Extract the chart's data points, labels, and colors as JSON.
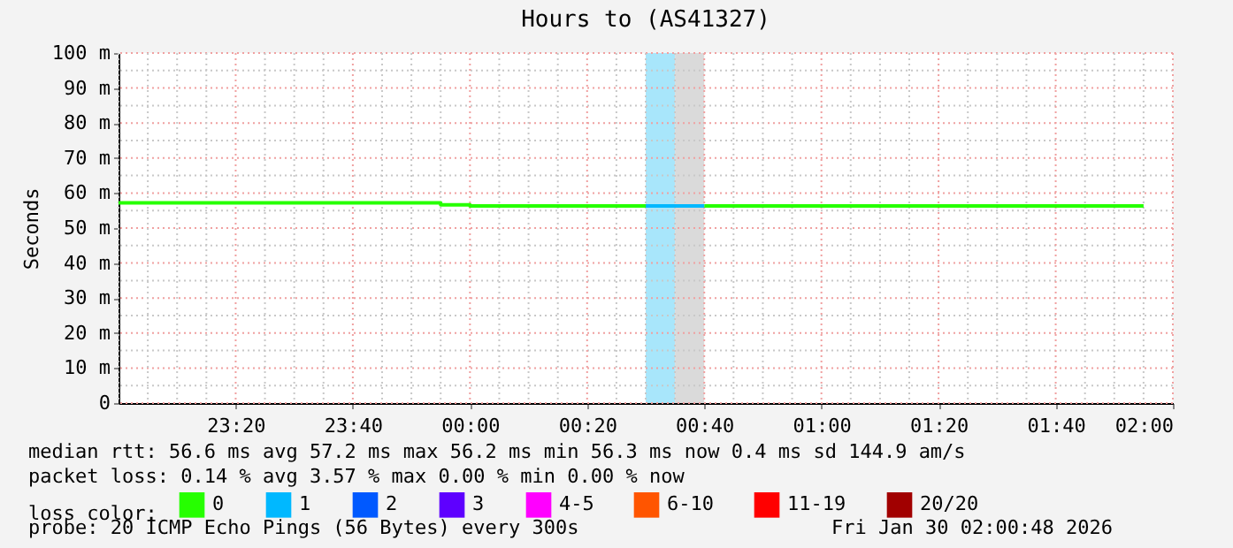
{
  "chart_data": {
    "type": "step",
    "title": "Hours to (AS41327)",
    "ylabel": "Seconds",
    "legend_title": "loss color:",
    "xlim": [
      "2026-01-29T23:00",
      "2026-01-30T02:00"
    ],
    "xticks": [
      {
        "value": "2026-01-29T23:00",
        "label": null
      },
      {
        "value": "2026-01-29T23:05",
        "label": null
      },
      {
        "value": "2026-01-29T23:10",
        "label": null
      },
      {
        "value": "2026-01-29T23:15",
        "label": null
      },
      {
        "value": "2026-01-29T23:20",
        "label": "23:20"
      },
      {
        "value": "2026-01-29T23:25",
        "label": null
      },
      {
        "value": "2026-01-29T23:30",
        "label": null
      },
      {
        "value": "2026-01-29T23:35",
        "label": null
      },
      {
        "value": "2026-01-29T23:40",
        "label": "23:40"
      },
      {
        "value": "2026-01-29T23:45",
        "label": null
      },
      {
        "value": "2026-01-29T23:50",
        "label": null
      },
      {
        "value": "2026-01-29T23:55",
        "label": null
      },
      {
        "value": "2026-01-30T00:00",
        "label": "00:00"
      },
      {
        "value": "2026-01-30T00:05",
        "label": null
      },
      {
        "value": "2026-01-30T00:10",
        "label": null
      },
      {
        "value": "2026-01-30T00:15",
        "label": null
      },
      {
        "value": "2026-01-30T00:20",
        "label": "00:20"
      },
      {
        "value": "2026-01-30T00:25",
        "label": null
      },
      {
        "value": "2026-01-30T00:30",
        "label": null
      },
      {
        "value": "2026-01-30T00:35",
        "label": null
      },
      {
        "value": "2026-01-30T00:40",
        "label": "00:40"
      },
      {
        "value": "2026-01-30T00:45",
        "label": null
      },
      {
        "value": "2026-01-30T00:50",
        "label": null
      },
      {
        "value": "2026-01-30T00:55",
        "label": null
      },
      {
        "value": "2026-01-30T01:00",
        "label": "01:00"
      },
      {
        "value": "2026-01-30T01:05",
        "label": null
      },
      {
        "value": "2026-01-30T01:10",
        "label": null
      },
      {
        "value": "2026-01-30T01:15",
        "label": null
      },
      {
        "value": "2026-01-30T01:20",
        "label": "01:20"
      },
      {
        "value": "2026-01-30T01:25",
        "label": null
      },
      {
        "value": "2026-01-30T01:30",
        "label": null
      },
      {
        "value": "2026-01-30T01:35",
        "label": null
      },
      {
        "value": "2026-01-30T01:40",
        "label": "01:40"
      },
      {
        "value": "2026-01-30T01:45",
        "label": null
      },
      {
        "value": "2026-01-30T01:50",
        "label": null
      },
      {
        "value": "2026-01-30T01:55",
        "label": null
      },
      {
        "value": "2026-01-30T02:00",
        "label": "02:00"
      }
    ],
    "ylim": [
      0,
      100
    ],
    "yticks": [
      0,
      {
        "value": 5,
        "label": null
      },
      {
        "value": 10,
        "label": "10 m"
      },
      {
        "value": 15,
        "label": null
      },
      {
        "value": 20,
        "label": "20 m"
      },
      {
        "value": 25,
        "label": null
      },
      {
        "value": 30,
        "label": "30 m"
      },
      {
        "value": 35,
        "label": null
      },
      {
        "value": 40,
        "label": "40 m"
      },
      {
        "value": 45,
        "label": null
      },
      {
        "value": 50,
        "label": "50 m"
      },
      {
        "value": 55,
        "label": null
      },
      {
        "value": 60,
        "label": "60 m"
      },
      {
        "value": 65,
        "label": null
      },
      {
        "value": 70,
        "label": "70 m"
      },
      {
        "value": 75,
        "label": null
      },
      {
        "value": 80,
        "label": "80 m"
      },
      {
        "value": 85,
        "label": null
      },
      {
        "value": 90,
        "label": "90 m"
      },
      {
        "value": 95,
        "label": null
      },
      {
        "value": 100,
        "label": "100 m"
      }
    ],
    "grid": true,
    "legend": "bottom",
    "line_style": "solid",
    "series": [
      {
        "name": "0",
        "color": "#26ff00",
        "x": [
          "2026-01-29T23:00",
          "2026-01-29T23:55",
          "2026-01-30T00:00",
          "2026-01-30T00:30",
          "2026-01-30T00:35",
          "2026-01-30T00:40",
          "2026-01-30T01:55"
        ],
        "values": [
          57.2,
          56.6,
          56.3,
          56.3,
          null,
          56.3,
          56.3
        ]
      },
      {
        "name": "1",
        "color": "#00b8ff",
        "x": [
          "2026-01-30T00:30",
          "2026-01-30T00:40"
        ],
        "values": [
          56.3,
          56.3
        ]
      },
      {
        "name": "2",
        "color": "#0059ff"
      },
      {
        "name": "3",
        "color": "#5e00ff"
      },
      {
        "name": "4-5",
        "color": "#ff00ff"
      },
      {
        "name": "6-10",
        "color": "#ff5500"
      },
      {
        "name": "11-19",
        "color": "#ff0000"
      },
      {
        "name": "20/20",
        "color": "#a10000"
      }
    ],
    "bands": [
      {
        "axis": "x",
        "from": "2026-01-30T00:30",
        "to": "2026-01-30T00:35",
        "color": "#a8e6fb"
      },
      {
        "axis": "x",
        "from": "2026-01-30T00:35",
        "to": "2026-01-30T00:40",
        "color": "#dadada"
      }
    ],
    "annotations": [
      "median rtt:  56.6 ms avg  57.2 ms max  56.2 ms min  56.3 ms now  0.4 ms sd  144.9   am/s",
      "packet loss: 0.14 % avg  3.57 % max  0.00 % min  0.00 % now",
      "probe:       20 ICMP Echo Pings (56 Bytes) every 300s",
      "Fri Jan 30 02:00:48 2026"
    ]
  }
}
